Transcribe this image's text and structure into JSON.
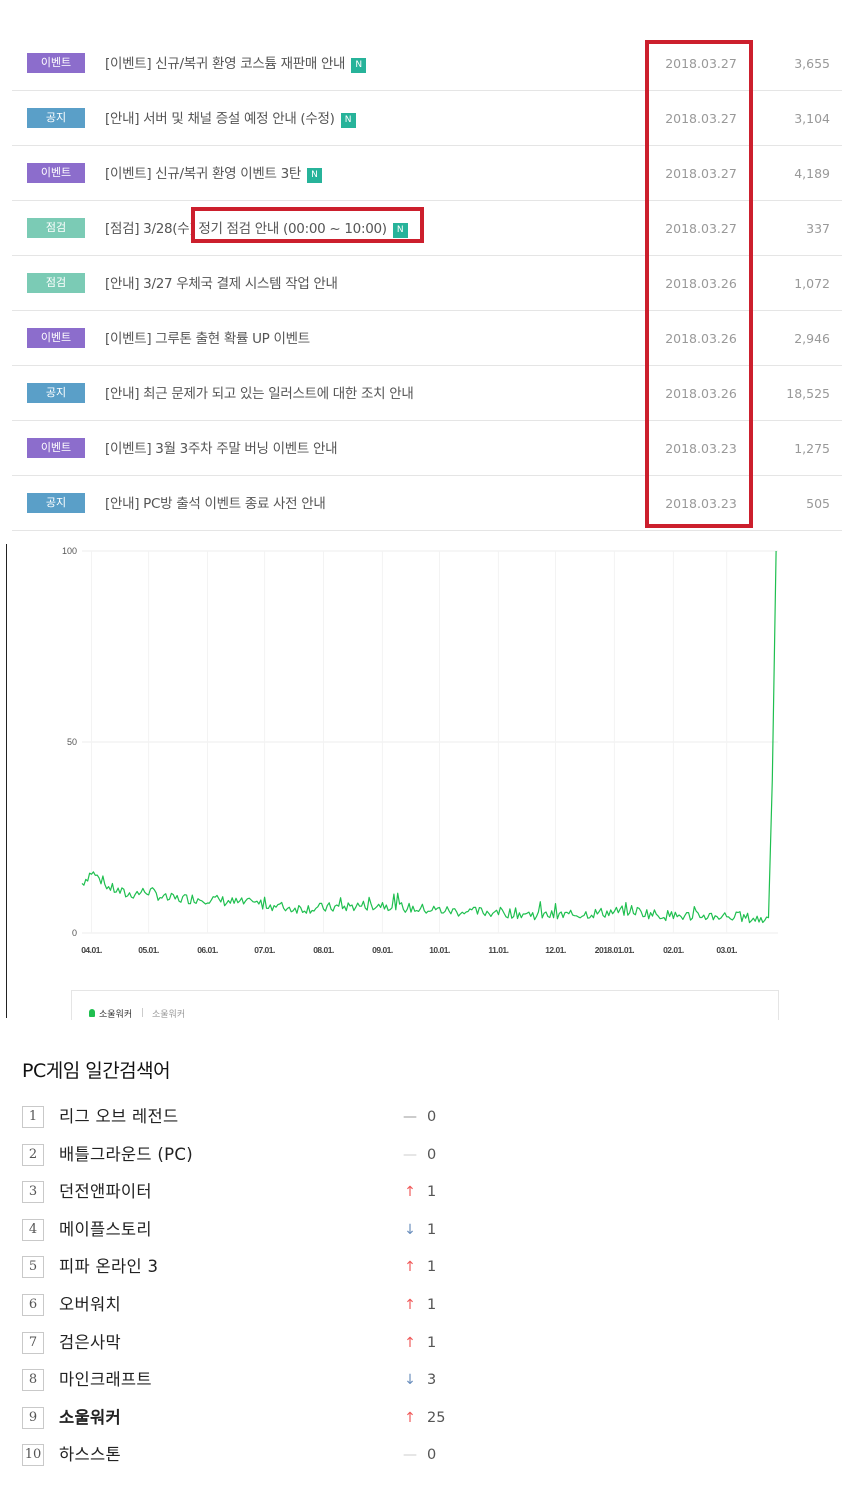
{
  "board": {
    "rows": [
      {
        "category": "이벤트",
        "type": "event",
        "title": "[이벤트] 신규/복귀 환영 코스튬 재판매 안내",
        "new": "N",
        "date": "2018.03.27",
        "views": "3,655"
      },
      {
        "category": "공지",
        "type": "notice",
        "title": "[안내] 서버 및 채널 증설 예정 안내 (수정)",
        "new": "N",
        "date": "2018.03.27",
        "views": "3,104"
      },
      {
        "category": "이벤트",
        "type": "event",
        "title": "[이벤트] 신규/복귀 환영 이벤트 3탄",
        "new": "N",
        "date": "2018.03.27",
        "views": "4,189"
      },
      {
        "category": "점검",
        "type": "maint",
        "title": "[점검] 3/28(수) 정기 점검 안내 (00:00 ~ 10:00)",
        "new": "N",
        "date": "2018.03.27",
        "views": "337"
      },
      {
        "category": "점검",
        "type": "maint",
        "title": "[안내] 3/27 우체국 결제 시스템 작업 안내",
        "new": "",
        "date": "2018.03.26",
        "views": "1,072"
      },
      {
        "category": "이벤트",
        "type": "event",
        "title": "[이벤트] 그루톤 출현 확률 UP 이벤트",
        "new": "",
        "date": "2018.03.26",
        "views": "2,946"
      },
      {
        "category": "공지",
        "type": "notice",
        "title": "[안내] 최근 문제가 되고 있는 일러스트에 대한 조치 안내",
        "new": "",
        "date": "2018.03.26",
        "views": "18,525"
      },
      {
        "category": "이벤트",
        "type": "event",
        "title": "[이벤트] 3월 3주차 주말 버닝 이벤트 안내",
        "new": "",
        "date": "2018.03.23",
        "views": "1,275"
      },
      {
        "category": "공지",
        "type": "notice",
        "title": "[안내] PC방 출석 이벤트 종료 사전 안내",
        "new": "",
        "date": "2018.03.23",
        "views": "505"
      }
    ],
    "colors": {
      "event": "#8c6dcc",
      "notice": "#5a9fc8",
      "maint": "#7bcbb5",
      "new_badge": "#27b39a",
      "highlight": "#cc1f2d"
    }
  },
  "chart_data": {
    "type": "line",
    "y_ticks": [
      "100",
      "50",
      "0"
    ],
    "ylim": [
      0,
      100
    ],
    "x_ticks": [
      "04.01.",
      "05.01.",
      "06.01.",
      "07.01.",
      "08.01.",
      "09.01.",
      "10.01.",
      "11.01.",
      "12.01.",
      "2018.01.01.",
      "02.01.",
      "03.01."
    ],
    "series": [
      {
        "name": "소울워커",
        "color": "#1fbf4f",
        "points": [
          [
            "2017-03-27",
            13
          ],
          [
            "2017-04-01",
            16
          ],
          [
            "2017-04-10",
            12
          ],
          [
            "2017-04-20",
            10
          ],
          [
            "2017-05-01",
            11
          ],
          [
            "2017-05-10",
            9
          ],
          [
            "2017-05-20",
            9
          ],
          [
            "2017-06-01",
            9
          ],
          [
            "2017-06-15",
            8
          ],
          [
            "2017-07-01",
            7.5
          ],
          [
            "2017-07-15",
            6.5
          ],
          [
            "2017-08-01",
            6.5
          ],
          [
            "2017-08-15",
            7
          ],
          [
            "2017-09-01",
            7.5
          ],
          [
            "2017-09-15",
            6.5
          ],
          [
            "2017-10-01",
            6
          ],
          [
            "2017-10-15",
            5.5
          ],
          [
            "2017-11-01",
            5.5
          ],
          [
            "2017-11-15",
            5
          ],
          [
            "2017-12-01",
            4.5
          ],
          [
            "2017-12-15",
            5
          ],
          [
            "2018-01-01",
            5.5
          ],
          [
            "2018-01-10",
            6
          ],
          [
            "2018-01-20",
            5
          ],
          [
            "2018-02-01",
            4.5
          ],
          [
            "2018-02-15",
            4.5
          ],
          [
            "2018-03-01",
            4.5
          ],
          [
            "2018-03-10",
            4
          ],
          [
            "2018-03-20",
            3.5
          ],
          [
            "2018-03-23",
            4
          ],
          [
            "2018-03-25",
            40
          ],
          [
            "2018-03-27",
            100
          ]
        ]
      }
    ],
    "legend": {
      "series_label": "소울워커",
      "sub_label": "소울워커"
    },
    "grid": true
  },
  "ranking": {
    "heading": "PC게임 일간검색어",
    "items": [
      {
        "rank": "1",
        "name": "리그 오브 레전드",
        "trend": "same",
        "change": "0",
        "bold": false
      },
      {
        "rank": "2",
        "name": "배틀그라운드 (PC)",
        "trend": "same-light",
        "change": "0",
        "bold": false
      },
      {
        "rank": "3",
        "name": "던전앤파이터",
        "trend": "up",
        "change": "1",
        "bold": false
      },
      {
        "rank": "4",
        "name": "메이플스토리",
        "trend": "down",
        "change": "1",
        "bold": false
      },
      {
        "rank": "5",
        "name": "피파 온라인 3",
        "trend": "up",
        "change": "1",
        "bold": false
      },
      {
        "rank": "6",
        "name": "오버워치",
        "trend": "up",
        "change": "1",
        "bold": false
      },
      {
        "rank": "7",
        "name": "검은사막",
        "trend": "up",
        "change": "1",
        "bold": false
      },
      {
        "rank": "8",
        "name": "마인크래프트",
        "trend": "down",
        "change": "3",
        "bold": false
      },
      {
        "rank": "9",
        "name": "소울워커",
        "trend": "up",
        "change": "25",
        "bold": true
      },
      {
        "rank": "10",
        "name": "하스스톤",
        "trend": "same-light",
        "change": "0",
        "bold": false
      }
    ]
  }
}
